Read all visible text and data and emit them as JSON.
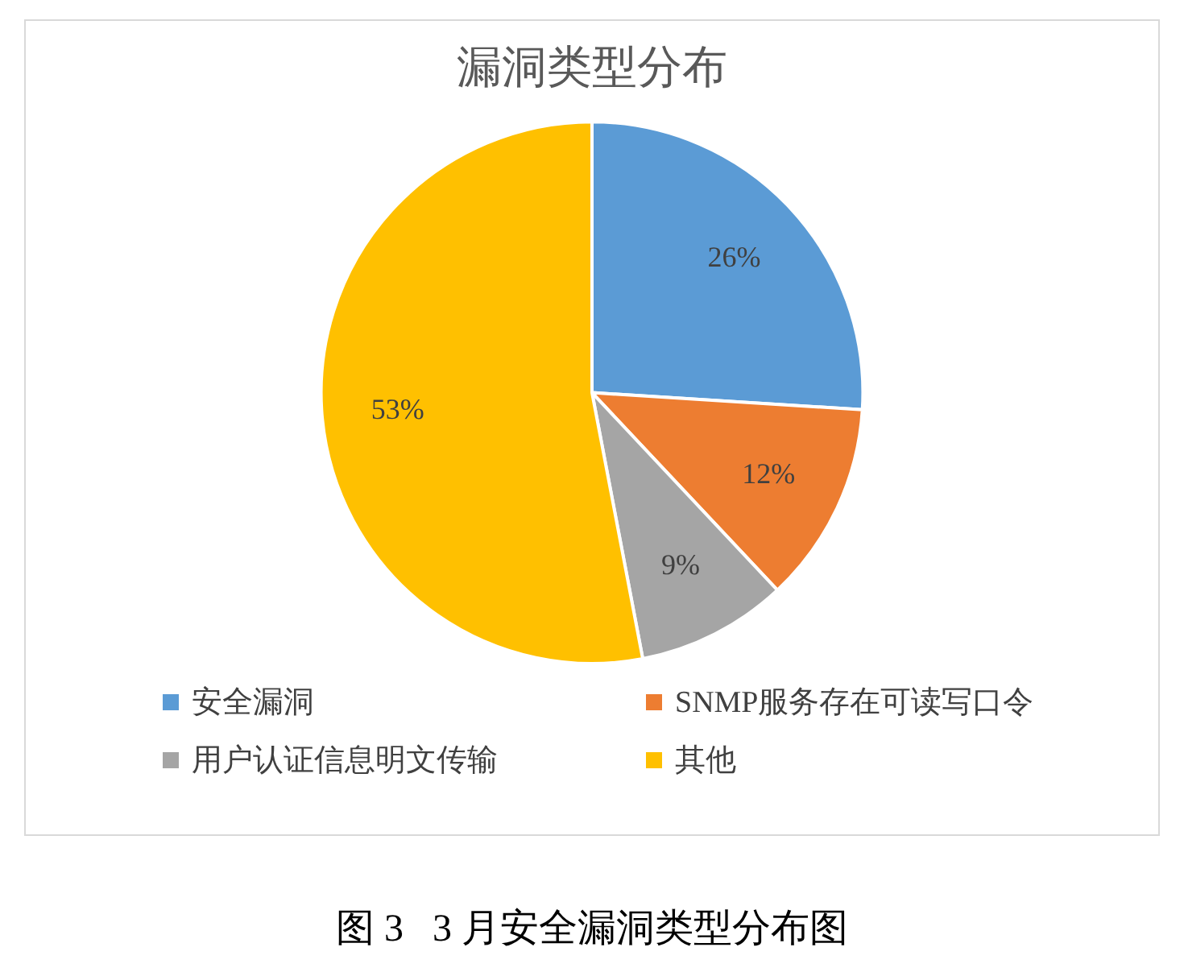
{
  "chart_data": {
    "type": "pie",
    "title": "漏洞类型分布",
    "categories": [
      "安全漏洞",
      "SNMP服务存在可读写口令",
      "用户认证信息明文传输",
      "其他"
    ],
    "values": [
      26,
      12,
      9,
      53
    ],
    "colors": [
      "#5b9bd5",
      "#ed7d31",
      "#a5a5a5",
      "#ffc000"
    ],
    "value_labels": [
      "26%",
      "12%",
      "9%",
      "53%"
    ],
    "legend": "bottom",
    "annotations": [
      "图 3   3 月安全漏洞类型分布图"
    ]
  }
}
